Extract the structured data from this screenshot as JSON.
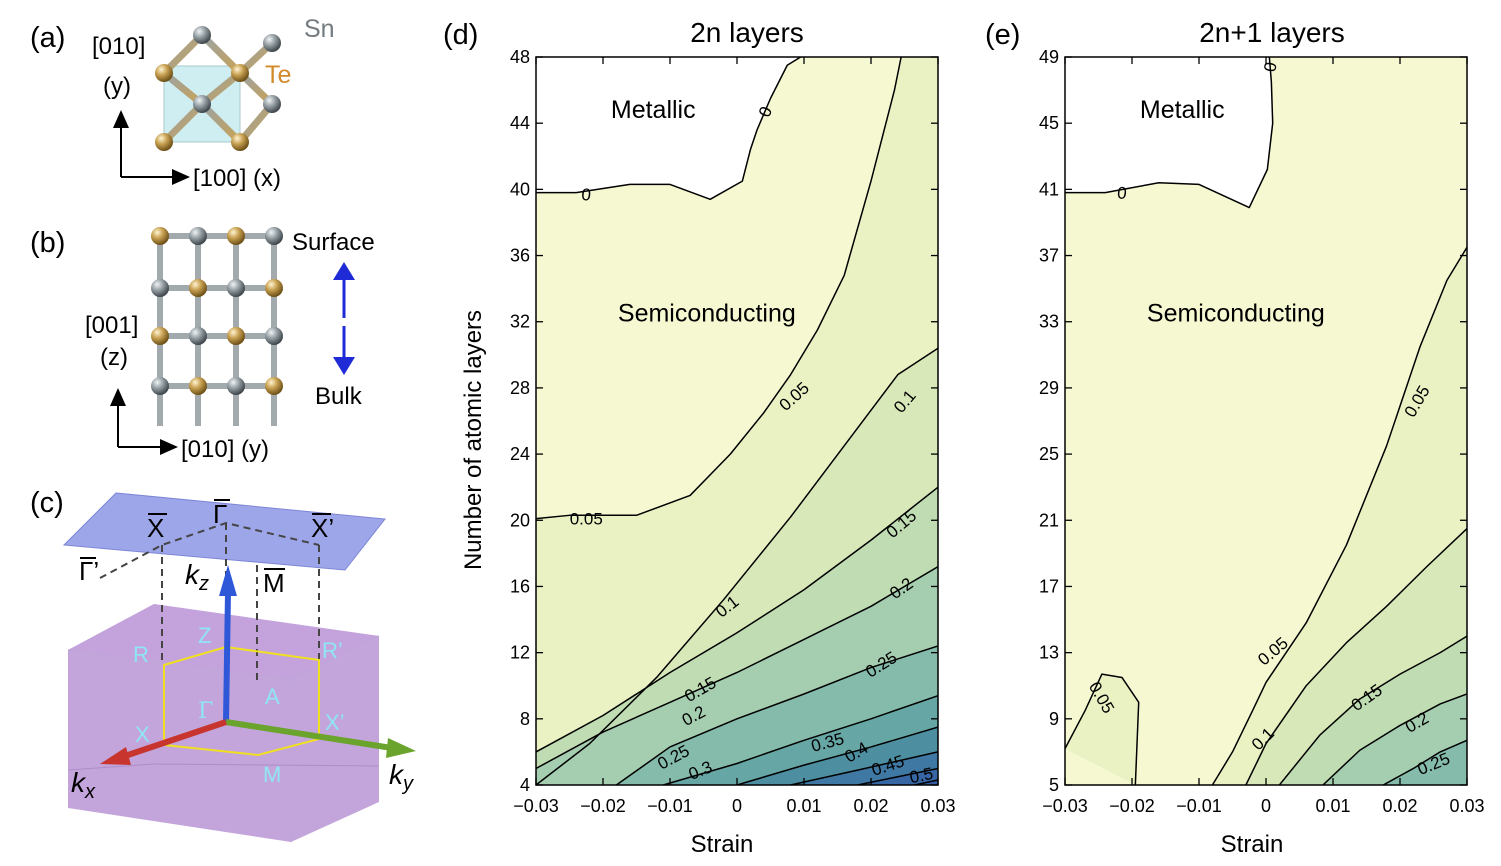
{
  "panel_labels": {
    "a": "(a)",
    "b": "(b)",
    "c": "(c)",
    "d": "(d)",
    "e": "(e)"
  },
  "panel_a": {
    "atom_sn": "Sn",
    "atom_te": "Te",
    "axis_y_dir": "[010]",
    "axis_y": "(y)",
    "axis_x": "[100] (x)",
    "colors": {
      "sn": "#8c959a",
      "te": "#c9a253",
      "cell": "#cfeef2"
    }
  },
  "panel_b": {
    "surface": "Surface",
    "bulk": "Bulk",
    "axis_z_dir": "[001]",
    "axis_z": "(z)",
    "axis_y": "[010] (y)",
    "arrow_color": "#1f2bd6"
  },
  "panel_c": {
    "surface_points": {
      "xbar": "X",
      "gammabar": "Γ",
      "xprimebar": "X’",
      "gammaprimebar": "Γ’",
      "mbar": "M"
    },
    "bulk_points": {
      "r": "R",
      "rprime": "R’",
      "z": "Z",
      "gamma": "Γ",
      "a": "A",
      "x": "X",
      "xprime": "X’",
      "m": "M"
    },
    "axes": {
      "kx": "k",
      "kx_sub": "x",
      "ky": "k",
      "ky_sub": "y",
      "kz": "k",
      "kz_sub": "z"
    },
    "colors": {
      "plane": "#9ea6ea",
      "cube": "#b48fd2",
      "bz": "#f0e020",
      "label": "#8fe6f2"
    }
  },
  "chart_data": [
    {
      "type": "contour",
      "title": "2n layers",
      "xlabel": "Strain",
      "ylabel": "Number of atomic layers",
      "xlim": [
        -0.03,
        0.03
      ],
      "ylim": [
        4,
        48
      ],
      "xticks": [
        -0.03,
        -0.02,
        -0.01,
        0,
        0.01,
        0.02,
        0.03
      ],
      "xtick_labels": [
        "−0.03",
        "−0.02",
        "−0.01",
        "0",
        "0.01",
        "0.02",
        "0.03"
      ],
      "yticks": [
        4,
        8,
        12,
        16,
        20,
        24,
        28,
        32,
        36,
        40,
        44,
        48
      ],
      "ytick_labels": [
        "4",
        "8",
        "12",
        "16",
        "20",
        "24",
        "28",
        "32",
        "36",
        "40",
        "44",
        "48"
      ],
      "regions": [
        {
          "text": "Metallic",
          "x": -0.0125,
          "y": 44.3
        },
        {
          "text": "Semiconducting",
          "x": -0.0045,
          "y": 32
        }
      ],
      "levels": [
        {
          "level": 0,
          "points": [
            [
              -0.03,
              39.8
            ],
            [
              -0.024,
              39.8
            ],
            [
              -0.016,
              40.3
            ],
            [
              -0.01,
              40.3
            ],
            [
              -0.004,
              39.4
            ],
            [
              0.0008,
              40.5
            ],
            [
              0.002,
              42.4
            ],
            [
              0.003,
              43.6
            ],
            [
              0.005,
              45.5
            ],
            [
              0.0075,
              47.5
            ],
            [
              0.0095,
              48
            ]
          ]
        },
        {
          "level": 0.05,
          "points": [
            [
              -0.03,
              20.1
            ],
            [
              -0.025,
              20.3
            ],
            [
              -0.015,
              20.3
            ],
            [
              -0.007,
              21.5
            ],
            [
              -0.001,
              24
            ],
            [
              0.004,
              26.5
            ],
            [
              0.008,
              28.8
            ],
            [
              0.012,
              31.5
            ],
            [
              0.016,
              34.8
            ],
            [
              0.02,
              40.5
            ],
            [
              0.0235,
              46
            ],
            [
              0.0245,
              48
            ]
          ]
        },
        {
          "level": 0.1,
          "points": [
            [
              -0.03,
              4
            ],
            [
              -0.022,
              6.5
            ],
            [
              -0.012,
              10.5
            ],
            [
              -0.002,
              15.2
            ],
            [
              0.008,
              20.2
            ],
            [
              0.016,
              24.5
            ],
            [
              0.024,
              28.8
            ],
            [
              0.03,
              30.4
            ]
          ]
        },
        {
          "level": 0.15,
          "points": [
            [
              -0.03,
              6
            ],
            [
              -0.02,
              8.2
            ],
            [
              -0.01,
              10.8
            ],
            [
              0,
              13.2
            ],
            [
              0.01,
              15.8
            ],
            [
              0.02,
              18.8
            ],
            [
              0.03,
              22
            ]
          ]
        },
        {
          "level": 0.2,
          "points": [
            [
              -0.03,
              5
            ],
            [
              -0.02,
              7.2
            ],
            [
              -0.01,
              9
            ],
            [
              0,
              10.8
            ],
            [
              0.01,
              12.8
            ],
            [
              0.02,
              14.8
            ],
            [
              0.03,
              17.2
            ]
          ]
        },
        {
          "level": 0.25,
          "points": [
            [
              -0.018,
              4
            ],
            [
              -0.01,
              6.3
            ],
            [
              0,
              8
            ],
            [
              0.01,
              9.5
            ],
            [
              0.02,
              11.1
            ],
            [
              0.03,
              12.4
            ]
          ]
        },
        {
          "level": 0.3,
          "points": [
            [
              -0.011,
              4
            ],
            [
              0,
              5.3
            ],
            [
              0.01,
              6.7
            ],
            [
              0.02,
              8
            ],
            [
              0.03,
              9.4
            ]
          ]
        },
        {
          "level": 0.35,
          "points": [
            [
              0.0,
              4
            ],
            [
              0.01,
              5.2
            ],
            [
              0.02,
              6.3
            ],
            [
              0.03,
              7.5
            ]
          ]
        },
        {
          "level": 0.4,
          "points": [
            [
              0.008,
              4
            ],
            [
              0.018,
              4.9
            ],
            [
              0.03,
              6
            ]
          ]
        },
        {
          "level": 0.45,
          "points": [
            [
              0.018,
              4
            ],
            [
              0.024,
              4.5
            ],
            [
              0.03,
              5
            ]
          ]
        },
        {
          "level": 0.5,
          "points": [
            [
              0.0265,
              4
            ],
            [
              0.03,
              4.3
            ]
          ]
        }
      ],
      "band_colors": [
        "#ffffff",
        "#f6f8d2",
        "#eaf2c4",
        "#d8e8b8",
        "#c0dcb2",
        "#a5cdb0",
        "#85bbaa",
        "#66a7a5",
        "#4d8ea1",
        "#3f78a2",
        "#3766a4",
        "#345aa4"
      ],
      "contour_labels": [
        {
          "text": "0",
          "x": -0.0225,
          "y": 39.7,
          "angle": 5
        },
        {
          "text": "0",
          "x": 0.0042,
          "y": 44.7,
          "angle": -68
        },
        {
          "text": "0.05",
          "x": -0.0225,
          "y": 20.1,
          "angle": 0
        },
        {
          "text": "0.05",
          "x": 0.0085,
          "y": 27.5,
          "angle": -42
        },
        {
          "text": "0.1",
          "x": -0.0015,
          "y": 14.8,
          "angle": -38
        },
        {
          "text": "0.1",
          "x": 0.025,
          "y": 27.2,
          "angle": -50
        },
        {
          "text": "0.15",
          "x": -0.0055,
          "y": 9.8,
          "angle": -30
        },
        {
          "text": "0.15",
          "x": 0.0245,
          "y": 19.8,
          "angle": -40
        },
        {
          "text": "0.2",
          "x": -0.0065,
          "y": 8.2,
          "angle": -28
        },
        {
          "text": "0.2",
          "x": 0.0245,
          "y": 15.9,
          "angle": -35
        },
        {
          "text": "0.25",
          "x": -0.0095,
          "y": 5.7,
          "angle": -28
        },
        {
          "text": "0.25",
          "x": 0.0215,
          "y": 11.3,
          "angle": -32
        },
        {
          "text": "0.3",
          "x": -0.0055,
          "y": 4.9,
          "angle": -22
        },
        {
          "text": "0.35",
          "x": 0.0135,
          "y": 6.6,
          "angle": -15
        },
        {
          "text": "0.4",
          "x": 0.0178,
          "y": 6.0,
          "angle": -30
        },
        {
          "text": "0.45",
          "x": 0.0225,
          "y": 5.2,
          "angle": -18
        },
        {
          "text": "0.5",
          "x": 0.0275,
          "y": 4.6,
          "angle": -12
        }
      ]
    },
    {
      "type": "contour",
      "title": "2n+1 layers",
      "xlabel": "Strain",
      "ylabel": "",
      "xlim": [
        -0.03,
        0.03
      ],
      "ylim": [
        5,
        49
      ],
      "xticks": [
        -0.03,
        -0.02,
        -0.01,
        0,
        0.01,
        0.02,
        0.03
      ],
      "xtick_labels": [
        "−0.03",
        "−0.02",
        "−0.01",
        "0",
        "0.01",
        "0.02",
        "0.03"
      ],
      "yticks": [
        5,
        9,
        13,
        17,
        21,
        25,
        29,
        33,
        37,
        41,
        45,
        49
      ],
      "ytick_labels": [
        "5",
        "9",
        "13",
        "17",
        "21",
        "25",
        "29",
        "33",
        "37",
        "41",
        "45",
        "49"
      ],
      "regions": [
        {
          "text": "Metallic",
          "x": -0.0125,
          "y": 45.3
        },
        {
          "text": "Semiconducting",
          "x": -0.0045,
          "y": 33
        }
      ],
      "levels": [
        {
          "level": 0,
          "points": [
            [
              -0.03,
              40.8
            ],
            [
              -0.024,
              40.8
            ],
            [
              -0.016,
              41.4
            ],
            [
              -0.01,
              41.3
            ],
            [
              -0.0025,
              39.9
            ],
            [
              0.0002,
              42.2
            ],
            [
              0.001,
              45
            ],
            [
              0.0008,
              47.5
            ],
            [
              0.0005,
              49
            ]
          ]
        },
        {
          "level": 0.05,
          "points": [
            [
              -0.03,
              7.2
            ],
            [
              -0.027,
              9.5
            ],
            [
              -0.0245,
              11.7
            ],
            [
              -0.0215,
              11.5
            ],
            [
              -0.019,
              10
            ],
            [
              -0.0195,
              5
            ]
          ]
        },
        {
          "level": 0.05,
          "points": [
            [
              -0.008,
              5
            ],
            [
              -0.005,
              7
            ],
            [
              -0.002,
              9.5
            ],
            [
              0,
              11.2
            ],
            [
              0.006,
              14.8
            ],
            [
              0.012,
              19.5
            ],
            [
              0.018,
              25.5
            ],
            [
              0.023,
              31.5
            ],
            [
              0.027,
              35.5
            ],
            [
              0.03,
              37.5
            ]
          ]
        },
        {
          "level": 0.1,
          "points": [
            [
              -0.003,
              5
            ],
            [
              0,
              7.5
            ],
            [
              0.006,
              11
            ],
            [
              0.012,
              13.6
            ],
            [
              0.018,
              15.8
            ],
            [
              0.024,
              18.2
            ],
            [
              0.03,
              20.5
            ]
          ]
        },
        {
          "level": 0.15,
          "points": [
            [
              0.002,
              5
            ],
            [
              0.008,
              8
            ],
            [
              0.014,
              10.2
            ],
            [
              0.02,
              11.7
            ],
            [
              0.026,
              13
            ],
            [
              0.03,
              14
            ]
          ]
        },
        {
          "level": 0.2,
          "points": [
            [
              0.0085,
              5
            ],
            [
              0.014,
              7.1
            ],
            [
              0.02,
              8.6
            ],
            [
              0.026,
              9.9
            ],
            [
              0.03,
              10.5
            ]
          ]
        },
        {
          "level": 0.25,
          "points": [
            [
              0.0175,
              5
            ],
            [
              0.022,
              6
            ],
            [
              0.026,
              7
            ],
            [
              0.03,
              7.7
            ]
          ]
        }
      ],
      "band_colors": [
        "#ffffff",
        "#f6f8d2",
        "#eaf2c4",
        "#d8e8b8",
        "#c0dcb2",
        "#a5cdb0",
        "#85bbaa"
      ],
      "contour_labels": [
        {
          "text": "0",
          "x": -0.0215,
          "y": 40.8,
          "angle": 5
        },
        {
          "text": "0",
          "x": 0.0006,
          "y": 48.4,
          "angle": -80
        },
        {
          "text": "0.05",
          "x": -0.0245,
          "y": 10.3,
          "angle": 60
        },
        {
          "text": "0.05",
          "x": 0.001,
          "y": 13.1,
          "angle": -40
        },
        {
          "text": "0.05",
          "x": 0.0225,
          "y": 28.2,
          "angle": -60
        },
        {
          "text": "0.1",
          "x": -0.0005,
          "y": 7.8,
          "angle": -45
        },
        {
          "text": "0.15",
          "x": 0.015,
          "y": 10.3,
          "angle": -35
        },
        {
          "text": "0.2",
          "x": 0.0225,
          "y": 8.8,
          "angle": -30
        },
        {
          "text": "0.25",
          "x": 0.025,
          "y": 6.3,
          "angle": -22
        }
      ]
    }
  ]
}
